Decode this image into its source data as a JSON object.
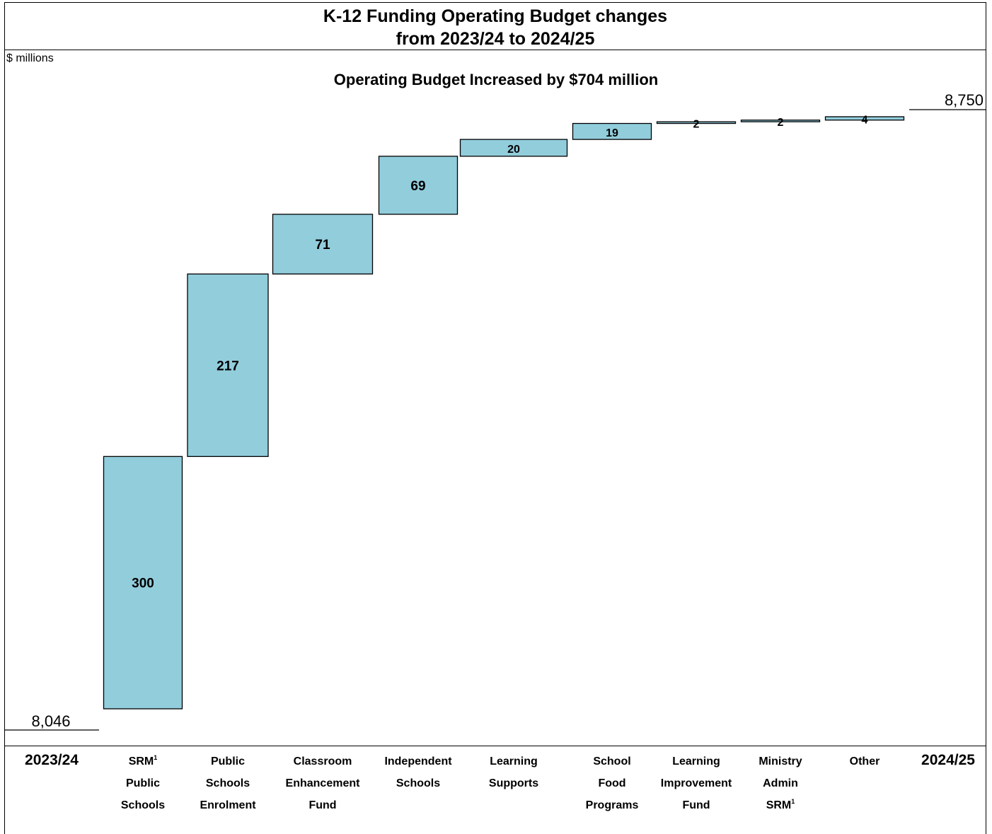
{
  "title": {
    "line1": "K-12 Funding Operating Budget changes",
    "line2": "from 2023/24 to 2024/25"
  },
  "units_label": "$ millions",
  "subtitle": "Operating Budget Increased by $704 million",
  "chart_data": {
    "type": "waterfall",
    "start": {
      "label": "2023/24",
      "value": 8046,
      "value_label": "8,046"
    },
    "end": {
      "label": "2024/25",
      "value": 8750,
      "value_label": "8,750"
    },
    "steps": [
      {
        "label_lines": [
          "SRM",
          "Public",
          "Schools"
        ],
        "footnote_line": 0,
        "value": 300,
        "value_label": "300"
      },
      {
        "label_lines": [
          "Public",
          "Schools",
          "Enrolment"
        ],
        "value": 217,
        "value_label": "217"
      },
      {
        "label_lines": [
          "Classroom",
          "Enhancement",
          "Fund"
        ],
        "value": 71,
        "value_label": "71"
      },
      {
        "label_lines": [
          "Independent",
          "Schools"
        ],
        "value": 69,
        "value_label": "69"
      },
      {
        "label_lines": [
          "Learning",
          "Supports"
        ],
        "value": 20,
        "value_label": "20"
      },
      {
        "label_lines": [
          "School",
          "Food",
          "Programs"
        ],
        "value": 19,
        "value_label": "19"
      },
      {
        "label_lines": [
          "Learning",
          "Improvement",
          "Fund"
        ],
        "value": 2,
        "value_label": "2"
      },
      {
        "label_lines": [
          "Ministry",
          "Admin",
          "SRM"
        ],
        "footnote_line": 2,
        "value": 2,
        "value_label": "2"
      },
      {
        "label_lines": [
          "Other"
        ],
        "value": 4,
        "value_label": "4"
      }
    ],
    "footnote_mark": "1",
    "bar_color": "#92cddc"
  }
}
